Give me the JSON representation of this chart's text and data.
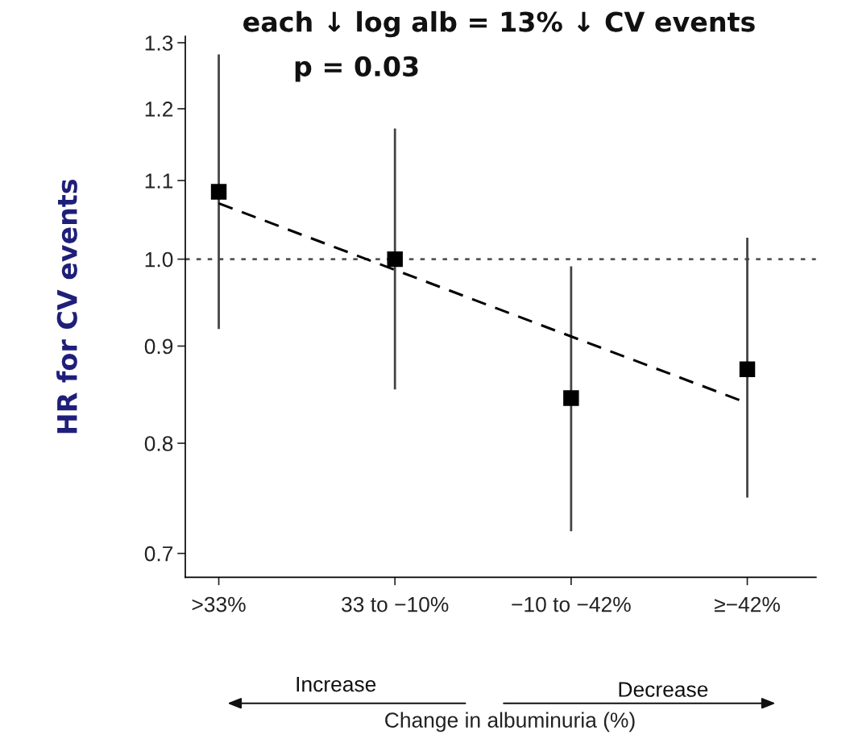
{
  "chart_data": {
    "type": "scatter",
    "categories": [
      ">33%",
      "33 to −10%",
      "−10 to −42%",
      "≥−42%"
    ],
    "xlabel": "Change in albuminuria (%)",
    "ylabel": "HR for CV events",
    "log": true,
    "ylim": [
      0.68,
      1.31
    ],
    "yticks": [
      0.7,
      0.8,
      0.9,
      {
        "value": 1.0,
        "label": "1.0"
      },
      1.1,
      1.2,
      1.3
    ],
    "grid": false,
    "series": [
      {
        "marker": "square",
        "color": "#000000",
        "values": [
          1.085,
          1.0,
          0.845,
          0.875
        ],
        "errors": [
          [
            0.92,
            1.28
          ],
          [
            0.855,
            1.17
          ],
          [
            0.72,
            0.99
          ],
          [
            0.75,
            1.025
          ]
        ]
      },
      {
        "type": "line",
        "color": "#000000",
        "line_style": "dashed",
        "x": [
          ">33%",
          "≥−42%"
        ],
        "values": [
          1.07,
          0.84
        ]
      }
    ],
    "ref_lines": [
      {
        "axis": "y",
        "value": 1.0,
        "line_style": "dotted",
        "color": "#555555"
      }
    ],
    "annotations": [
      "each ↓ log alb = 13% ↓ CV events",
      "p = 0.03",
      "Increase",
      "Decrease"
    ]
  }
}
